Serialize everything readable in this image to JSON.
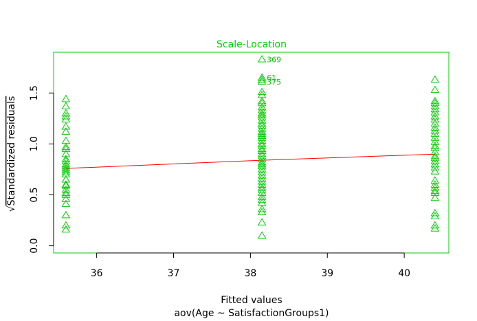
{
  "chart_data": {
    "type": "scatter",
    "title": "Scale-Location",
    "xlabel": "Fitted values",
    "subtitle": "aov(Age ~ SatisfactionGroups1)",
    "ylabel_text": "Standardized residuals",
    "ylabel_prefix": "√",
    "xlim": [
      35.44,
      40.58
    ],
    "ylim": [
      -0.07,
      1.9
    ],
    "x_ticks": [
      {
        "value": 36,
        "label": "36"
      },
      {
        "value": 37,
        "label": "37"
      },
      {
        "value": 38,
        "label": "38"
      },
      {
        "value": 39,
        "label": "39"
      },
      {
        "value": 40,
        "label": "40"
      }
    ],
    "y_ticks": [
      {
        "value": 0.0,
        "label": "0.0"
      },
      {
        "value": 0.5,
        "label": "0.5"
      },
      {
        "value": 1.0,
        "label": "1.0"
      },
      {
        "value": 1.5,
        "label": "1.5"
      }
    ],
    "marker": "triangle",
    "colors": {
      "points": "#00cc00",
      "axes": "#00cc00",
      "title": "#00cc00",
      "smoother": "#ff0000",
      "text": "#000000"
    },
    "groups": [
      {
        "x": 35.6,
        "y": [
          0.16,
          0.2,
          0.3,
          0.41,
          0.46,
          0.5,
          0.52,
          0.55,
          0.59,
          0.6,
          0.65,
          0.7,
          0.72,
          0.74,
          0.76,
          0.78,
          0.8,
          0.83,
          0.85,
          0.9,
          0.95,
          0.97,
          1.03,
          1.12,
          1.17,
          1.24,
          1.27,
          1.3,
          1.37,
          1.44
        ]
      },
      {
        "x": 38.15,
        "y": [
          0.1,
          0.23,
          0.33,
          0.36,
          0.42,
          0.45,
          0.48,
          0.52,
          0.55,
          0.57,
          0.6,
          0.63,
          0.66,
          0.69,
          0.72,
          0.75,
          0.78,
          0.8,
          0.82,
          0.85,
          0.88,
          0.9,
          0.93,
          0.95,
          0.98,
          1.0,
          1.03,
          1.06,
          1.08,
          1.1,
          1.12,
          1.15,
          1.18,
          1.2,
          1.23,
          1.26,
          1.28,
          1.3,
          1.33,
          1.36,
          1.4,
          1.42,
          1.48,
          1.51,
          1.61,
          1.63,
          1.65,
          1.83
        ]
      },
      {
        "x": 40.4,
        "y": [
          0.17,
          0.2,
          0.29,
          0.32,
          0.47,
          0.52,
          0.54,
          0.57,
          0.6,
          0.64,
          0.73,
          0.77,
          0.8,
          0.83,
          0.86,
          0.88,
          0.92,
          0.96,
          0.98,
          1.02,
          1.06,
          1.1,
          1.13,
          1.16,
          1.2,
          1.24,
          1.27,
          1.31,
          1.34,
          1.37,
          1.4,
          1.42,
          1.53,
          1.63
        ]
      }
    ],
    "labeled_points": [
      {
        "x": 38.15,
        "y": 1.83,
        "label": "369"
      },
      {
        "x": 38.15,
        "y": 1.65,
        "label": "61"
      },
      {
        "x": 38.15,
        "y": 1.61,
        "label": "375"
      }
    ],
    "smoother": {
      "x": [
        35.6,
        38.15,
        40.4
      ],
      "y": [
        0.76,
        0.84,
        0.9
      ]
    }
  }
}
